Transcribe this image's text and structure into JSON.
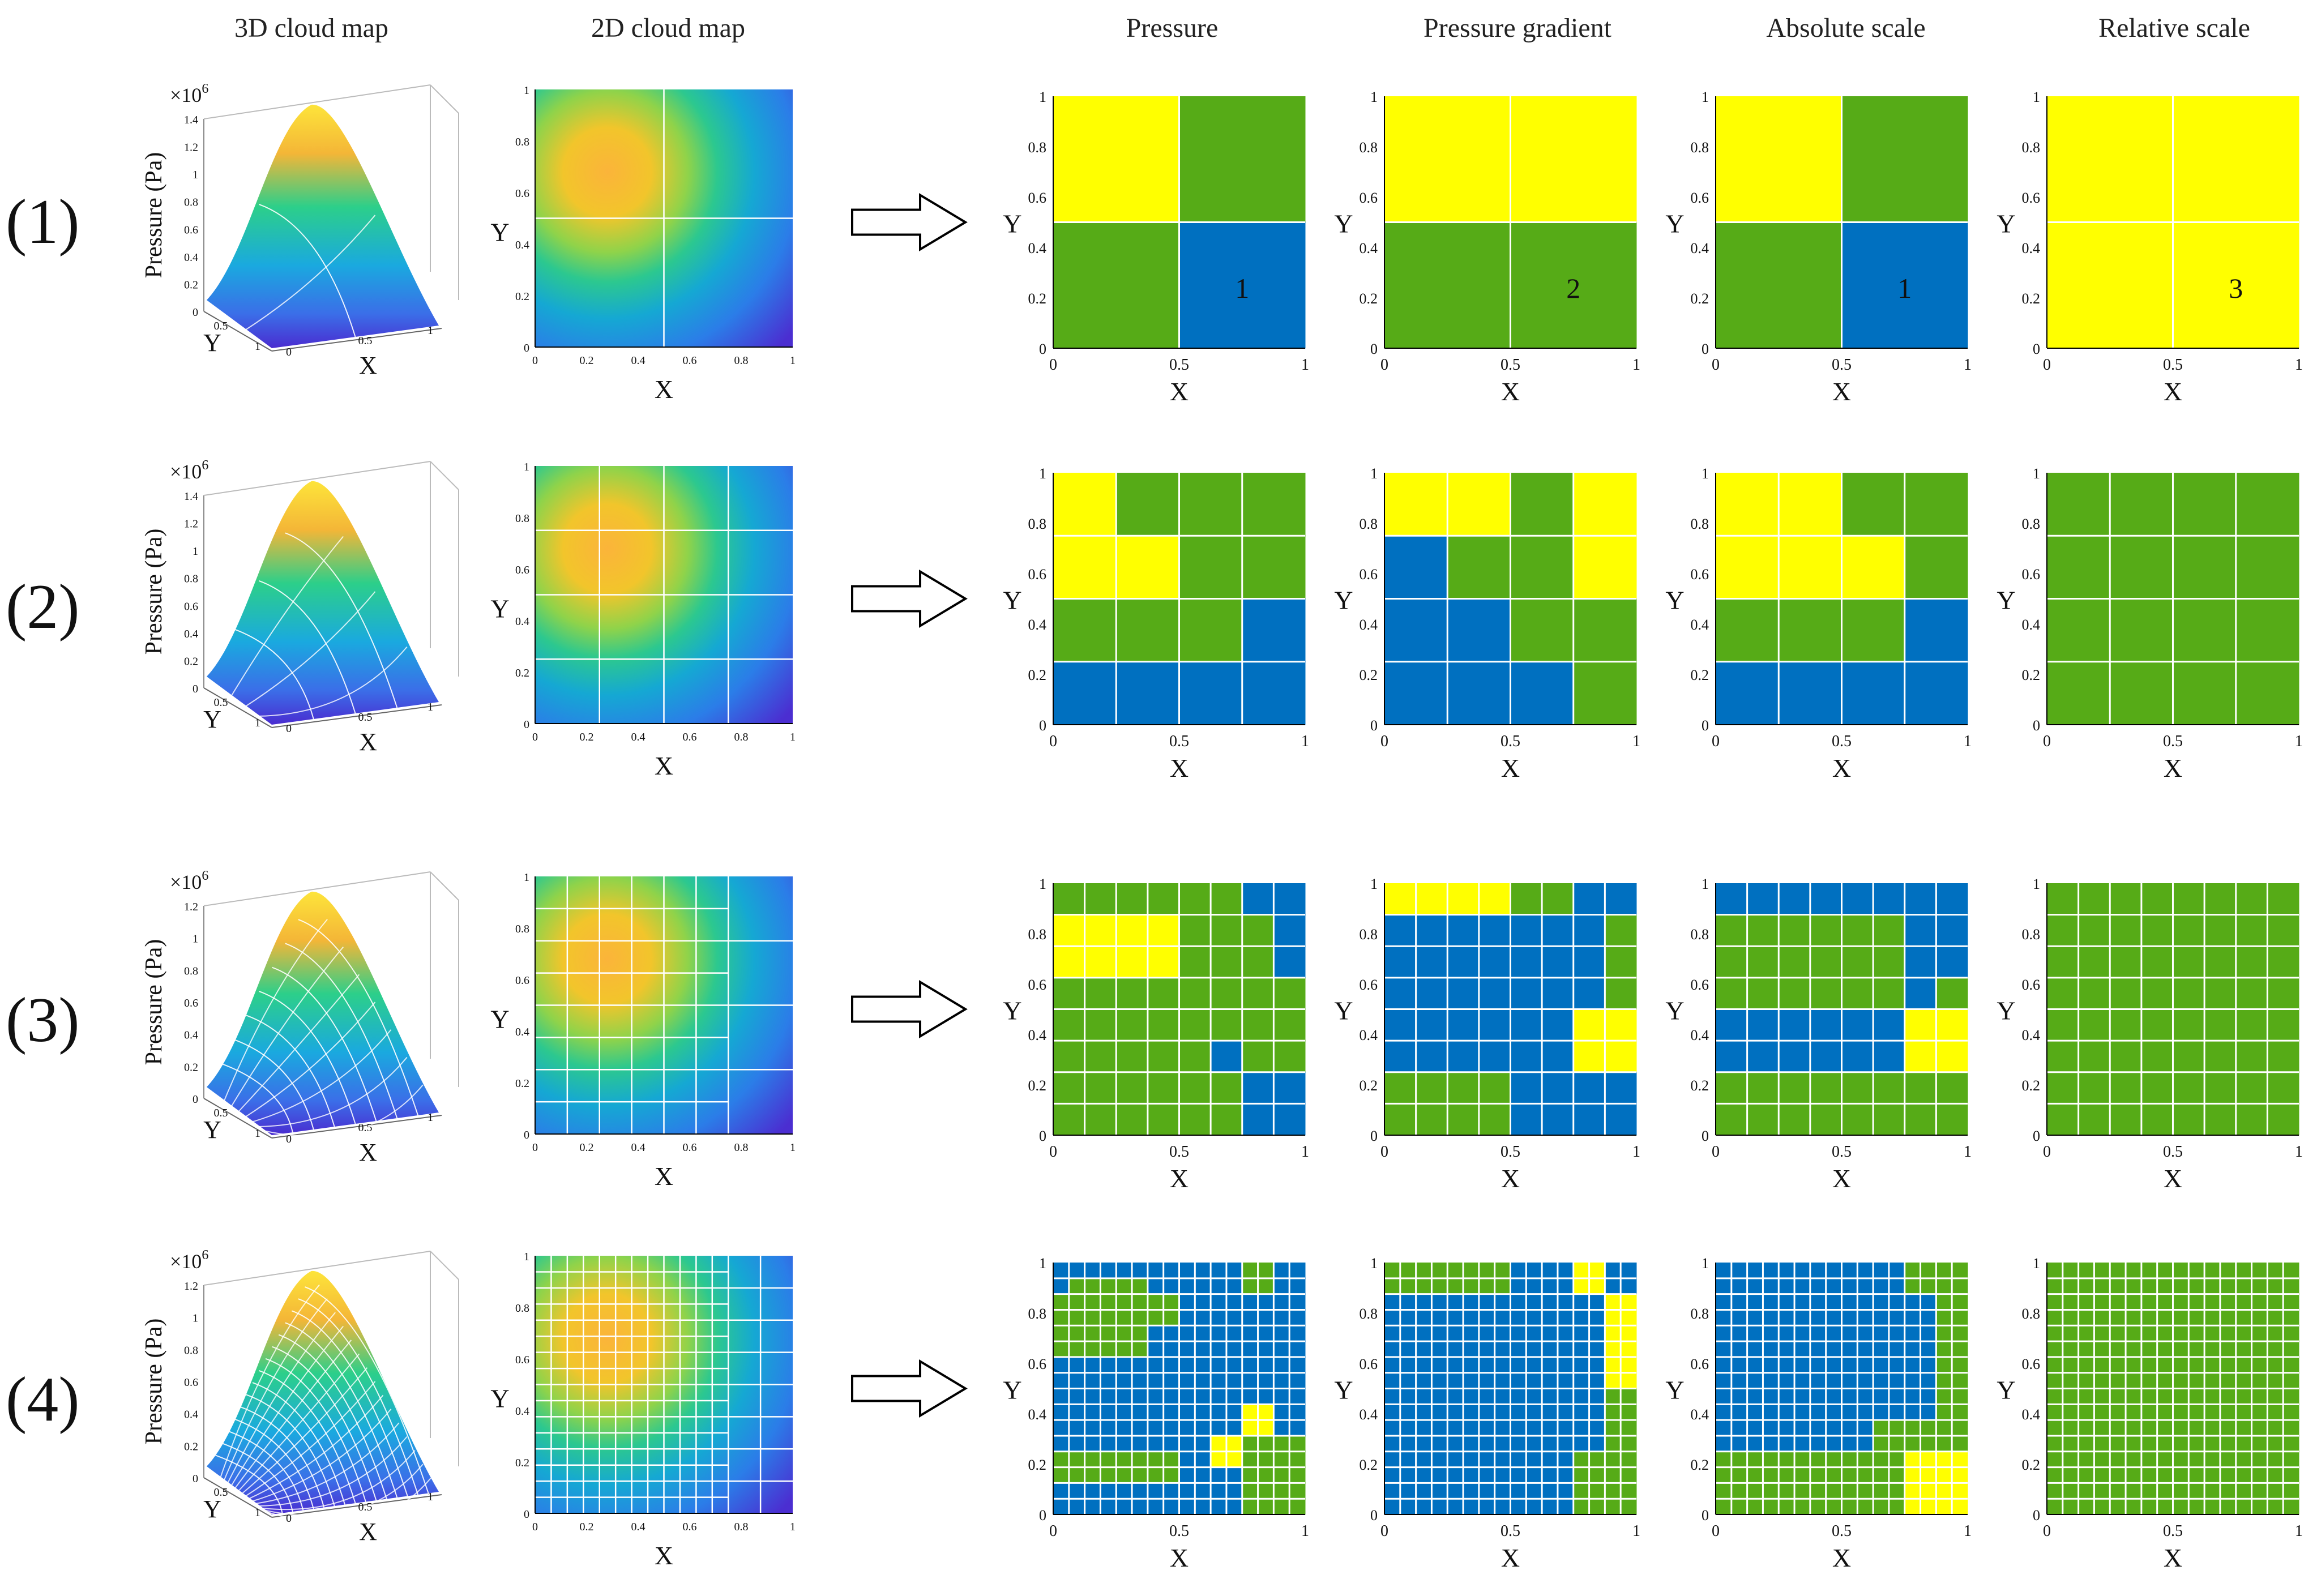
{
  "headers": [
    "3D cloud map",
    "2D cloud map",
    "Pressure",
    "Pressure gradient",
    "Absolute scale",
    "Relative scale"
  ],
  "row_labels": [
    "(1)",
    "(2)",
    "(3)",
    "(4)"
  ],
  "axis": {
    "x_label": "X",
    "y_label": "Y",
    "z_label": "Pressure (Pa)",
    "scale_base": "×10",
    "scale_exp": "6",
    "ticks_small": [
      "0",
      "0.2",
      "0.4",
      "0.6",
      "0.8",
      "1"
    ],
    "ticks_x": [
      "0",
      "0.5",
      "1"
    ],
    "ticks_3d_xy": [
      "0.5",
      "1"
    ],
    "ticks_3d_z": {
      "row1": [
        "0",
        "0.2",
        "0.4",
        "0.6",
        "0.8",
        "1",
        "1.2",
        "1.4"
      ],
      "row2": [
        "0",
        "0.2",
        "0.4",
        "0.6",
        "0.8",
        "1",
        "1.2",
        "1.4"
      ],
      "row3": [
        "0",
        "0.2",
        "0.4",
        "0.6",
        "0.8",
        "1",
        "1.2"
      ],
      "row4": [
        "0",
        "0.2",
        "0.4",
        "0.6",
        "0.8",
        "1",
        "1.2"
      ]
    }
  },
  "panel_numbers": [
    "1",
    "2",
    "1",
    "3"
  ],
  "colors": {
    "yellow": "#ffff00",
    "green": "#56ab17",
    "blue": "#0070c0",
    "grid": "#ffffff"
  },
  "grids": {
    "row1": {
      "pressure": [
        "YG",
        "GB"
      ],
      "gradient": [
        "YY",
        "GG"
      ],
      "absolute": [
        "YG",
        "GB"
      ],
      "relative": [
        "YY",
        "YY"
      ]
    },
    "row2": {
      "pressure": [
        "YGGG",
        "YYGG",
        "GGGB",
        "BBBB"
      ],
      "gradient": [
        "YYGY",
        "BGGY",
        "BBGG",
        "BBBG"
      ],
      "absolute": [
        "YYGG",
        "YYYG",
        "GGGB",
        "BBBB"
      ],
      "relative": [
        "GGGG",
        "GGGG",
        "GGGG",
        "GGGG"
      ]
    },
    "row3": {
      "pressure": [
        "GGGGGGBB",
        "YYYYGGGB",
        "YYYYGGGB",
        "GGGGGGGG",
        "GGGGGGGG",
        "GGGGGBGG",
        "GGGGGGBB",
        "GGGGGGBB"
      ],
      "gradient": [
        "YYYYGGBB",
        "BBBBBBBG",
        "BBBBBBBG",
        "BBBBBBBG",
        "BBBBBBYY",
        "BBBBBBYY",
        "GGGGBBBB",
        "GGGGBBBB"
      ],
      "absolute": [
        "BBBBBBBB",
        "GGGGGGBB",
        "GGGGGGBB",
        "GGGGGGBG",
        "BBBBBBYY",
        "BBBBBBYY",
        "GGGGGGGG",
        "GGGGGGGG"
      ],
      "relative": [
        "GGGGGGGG",
        "GGGGGGGG",
        "GGGGGGGG",
        "GGGGGGGG",
        "GGGGGGGG",
        "GGGGGGGG",
        "GGGGGGGG",
        "GGGGGGGG"
      ]
    },
    "row4": {
      "pressure": [
        "BBBBBBBBBBBBGGBB",
        "BGGGGGBBBBBBGGBB",
        "GGGGGGGGBBBBBBBB",
        "GGGGGGGGBBBBBBBB",
        "GGGGGGBBBBBBBBBB",
        "GGGGGGBBBBBBBBBB",
        "BBBBBBBBBBBBBBBB",
        "BBBBBBBBBBBBBBBB",
        "BBBBBBBBBBBBBBBB",
        "BBBBBBBBBBBBYYBB",
        "BBBBBBBBBBBBYYBB",
        "BBBBBBBBBBYYGGGG",
        "GGGGGGGGBBYYGGGG",
        "GGGGGGGGBBBBGGGG",
        "BBBBBBBBBBBBGGGG",
        "BBBBBBBBBBBBGGGG"
      ],
      "gradient": [
        "GGGGGGGGBBBBYYBB",
        "GGGGGGGGBBBBYYBB",
        "BBBBBBBBBBBBBBYY",
        "BBBBBBBBBBBBBBYY",
        "BBBBBBBBBBBBBBYY",
        "BBBBBBBBBBBBBBYY",
        "BBBBBBBBBBBBBBYY",
        "BBBBBBBBBBBBBBYY",
        "BBBBBBBBBBBBBBGG",
        "BBBBBBBBBBBBBBGG",
        "BBBBBBBBBBBBBBGG",
        "BBBBBBBBBBBBBBGG",
        "BBBBBBBBBBBBGGGG",
        "BBBBBBBBBBBBGGGG",
        "BBBBBBBBBBBBGGGG",
        "BBBBBBBBBBBBGGGG"
      ],
      "absolute": [
        "BBBBBBBBBBBBGGGG",
        "BBBBBBBBBBBBGGGG",
        "BBBBBBBBBBBBBBGG",
        "BBBBBBBBBBBBBBGG",
        "BBBBBBBBBBBBBBGG",
        "BBBBBBBBBBBBBBGG",
        "BBBBBBBBBBBBBBGG",
        "BBBBBBBBBBBBBBGG",
        "BBBBBBBBBBBBBBGG",
        "BBBBBBBBBBBBBBGG",
        "BBBBBBBBBBGGGGGG",
        "BBBBBBBBBBGGGGGG",
        "GGGGGGGGGGGGYYYY",
        "GGGGGGGGGGGGYYYY",
        "GGGGGGGGGGGGYYYY",
        "GGGGGGGGGGGGYYYY"
      ],
      "relative": [
        "GGGGGGGGGGGGGGGG",
        "GGGGGGGGGGGGGGGG",
        "GGGGGGGGGGGGGGGG",
        "GGGGGGGGGGGGGGGG",
        "GGGGGGGGGGGGGGGG",
        "GGGGGGGGGGGGGGGG",
        "GGGGGGGGGGGGGGGG",
        "GGGGGGGGGGGGGGGG",
        "GGGGGGGGGGGGGGGG",
        "GGGGGGGGGGGGGGGG",
        "GGGGGGGGGGGGGGGG",
        "GGGGGGGGGGGGGGGG",
        "GGGGGGGGGGGGGGGG",
        "GGGGGGGGGGGGGGGG",
        "GGGGGGGGGGGGGGGG",
        "GGGGGGGGGGGGGGGG"
      ]
    }
  },
  "subdivision_levels": [
    2,
    4,
    8,
    16
  ]
}
